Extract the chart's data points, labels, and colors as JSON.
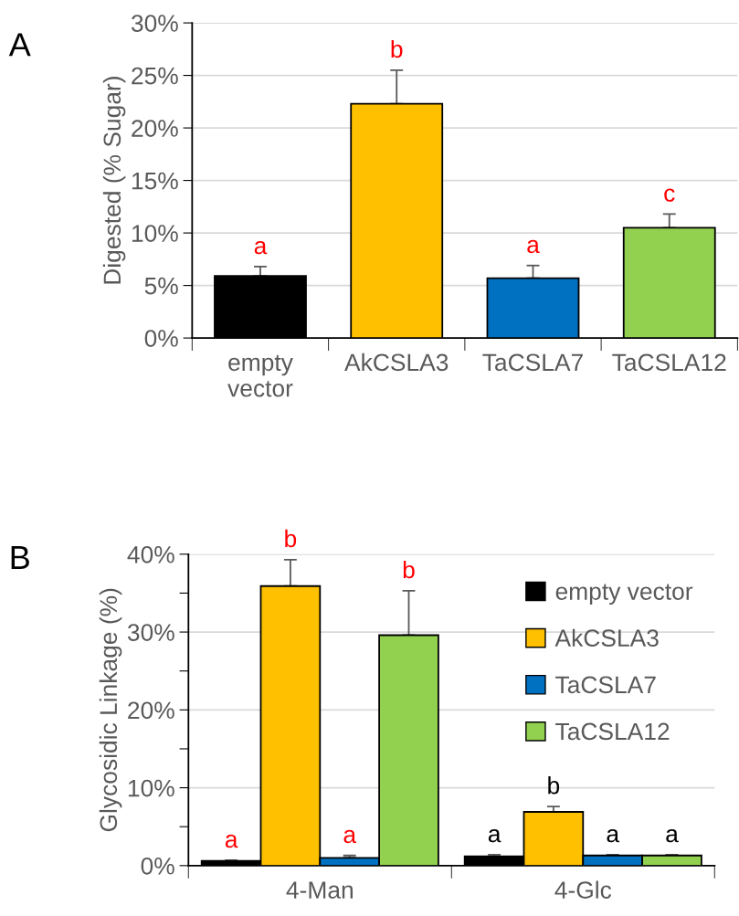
{
  "chart_data": [
    {
      "type": "bar",
      "title": "A",
      "ylabel": "Digested (% Sugar)",
      "categories": [
        "empty vector",
        "AkCSLA3",
        "TaCSLA7",
        "TaCSLA12"
      ],
      "series": [
        {
          "values": [
            5.9,
            22.3,
            5.7,
            10.5
          ],
          "colors": [
            "#000000",
            "#ffc000",
            "#0070c0",
            "#92d050"
          ],
          "errors": [
            0.9,
            3.2,
            1.2,
            1.3
          ],
          "value_labels": [
            "a",
            "b",
            "a",
            "c"
          ]
        }
      ],
      "ylim": [
        0,
        30
      ],
      "yticks": [
        {
          "value": 0,
          "label": "0%"
        },
        {
          "value": 5,
          "label": "5%"
        },
        {
          "value": 10,
          "label": "10%"
        },
        {
          "value": 15,
          "label": "15%"
        },
        {
          "value": 20,
          "label": "20%"
        },
        {
          "value": 25,
          "label": "25%"
        },
        {
          "value": 30,
          "label": "30%"
        }
      ],
      "grid": "y"
    },
    {
      "type": "bar",
      "title": "B",
      "ylabel": "Glycosidic Linkage (%)",
      "categories": [
        "4-Man",
        "4-Glc"
      ],
      "series": [
        {
          "name": "empty vector",
          "color": "#000000",
          "values": [
            0.6,
            1.2
          ],
          "errors": [
            0.1,
            0.2
          ],
          "value_labels": [
            "a",
            "a"
          ]
        },
        {
          "name": "AkCSLA3",
          "color": "#ffc000",
          "values": [
            35.9,
            6.9
          ],
          "errors": [
            3.4,
            0.7
          ],
          "value_labels": [
            "b",
            "b"
          ]
        },
        {
          "name": "TaCSLA7",
          "color": "#0070c0",
          "values": [
            1.0,
            1.3
          ],
          "errors": [
            0.3,
            0.1
          ],
          "value_labels": [
            "a",
            "a"
          ]
        },
        {
          "name": "TaCSLA12",
          "color": "#92d050",
          "values": [
            29.6,
            1.3
          ],
          "errors": [
            5.7,
            0.1
          ],
          "value_labels": [
            "b",
            "a"
          ]
        }
      ],
      "ylim": [
        0,
        40
      ],
      "yticks": [
        {
          "value": 0,
          "label": "0%"
        },
        {
          "value": 5,
          "label": null
        },
        {
          "value": 10,
          "label": "10%"
        },
        {
          "value": 15,
          "label": null
        },
        {
          "value": 20,
          "label": "20%"
        },
        {
          "value": 25,
          "label": null
        },
        {
          "value": 30,
          "label": "30%"
        },
        {
          "value": 35,
          "label": null
        },
        {
          "value": 40,
          "label": "40%"
        }
      ],
      "grid": "y",
      "legend": "top right"
    }
  ]
}
